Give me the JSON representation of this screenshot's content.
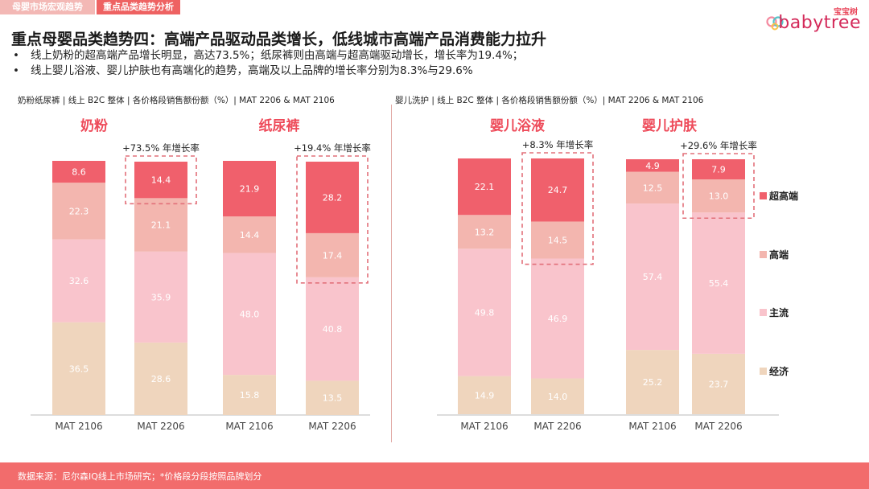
{
  "nav": {
    "tab1": "母婴市场宏观趋势",
    "tab2": "重点品类趋势分析"
  },
  "logo": {
    "cn": "宝宝树",
    "en": "babytree"
  },
  "page_title": "重点母婴品类趋势四：高端产品驱动品类增长，低线城市高端产品消费能力拉升",
  "bullets": [
    "线上奶粉的超高端产品增长明显，高达73.5%；纸尿裤则由高端与超高端驱动增长，增长率为19.4%；",
    "线上婴儿浴液、婴儿护肤也有高端化的趋势，高端及以上品牌的增长率分别为8.3%与29.6%"
  ],
  "bullet_marker": "•",
  "panel_notes": {
    "left": "奶粉纸尿裤 | 线上 B2C 整体 | 各价格段销售额份额（%）| MAT 2206 & MAT 2106",
    "right": "婴儿洗护 | 线上 B2C 整体 | 各价格段销售额份额（%）| MAT 2206 & MAT 2106"
  },
  "colors": {
    "super_premium": "#f0606c",
    "premium": "#f3b6af",
    "mainstream": "#f9c4cc",
    "economy": "#efd5bd",
    "heading": "#ee4b5a",
    "highlight_box": "#e2707a"
  },
  "chart_data": {
    "type": "bar",
    "stacked": true,
    "unit": "%",
    "legend": [
      "超高端",
      "高端",
      "主流",
      "经济"
    ],
    "legend_position": "right",
    "categories": [
      "MAT 2106",
      "MAT 2206"
    ],
    "groups": [
      {
        "title": "奶粉",
        "bars": [
          {
            "label": "MAT 2106",
            "values": {
              "超高端": 8.6,
              "高端": 22.3,
              "主流": 32.6,
              "经济": 36.5
            }
          },
          {
            "label": "MAT 2206",
            "values": {
              "超高端": 14.4,
              "高端": 21.1,
              "主流": 35.9,
              "经济": 28.6
            }
          }
        ],
        "growth_annotation": "+73.5% 年增长率",
        "highlight_segments": [
          "超高端"
        ]
      },
      {
        "title": "纸尿裤",
        "bars": [
          {
            "label": "MAT 2106",
            "values": {
              "超高端": 21.9,
              "高端": 14.4,
              "主流": 48.0,
              "经济": 15.8
            }
          },
          {
            "label": "MAT 2206",
            "values": {
              "超高端": 28.2,
              "高端": 17.4,
              "主流": 40.8,
              "经济": 13.5
            }
          }
        ],
        "growth_annotation": "+19.4% 年增长率",
        "highlight_segments": [
          "超高端",
          "高端"
        ]
      },
      {
        "title": "婴儿浴液",
        "bars": [
          {
            "label": "MAT 2106",
            "values": {
              "超高端": 22.1,
              "高端": 13.2,
              "主流": 49.8,
              "经济": 14.9
            }
          },
          {
            "label": "MAT 2206",
            "values": {
              "超高端": 24.7,
              "高端": 14.5,
              "主流": 46.9,
              "经济": 14.0
            }
          }
        ],
        "growth_annotation": "+8.3% 年增长率",
        "highlight_segments": [
          "超高端",
          "高端"
        ]
      },
      {
        "title": "婴儿护肤",
        "bars": [
          {
            "label": "MAT 2106",
            "values": {
              "超高端": 4.9,
              "高端": 12.5,
              "主流": 57.4,
              "经济": 25.2
            }
          },
          {
            "label": "MAT 2206",
            "values": {
              "超高端": 7.9,
              "高端": 13.0,
              "主流": 55.4,
              "经济": 23.7
            }
          }
        ],
        "growth_annotation": "+29.6% 年增长率",
        "highlight_segments": [
          "超高端",
          "高端"
        ]
      }
    ]
  },
  "footer": "数据来源：尼尔森IQ线上市场研究；*价格段分段按照品牌划分"
}
